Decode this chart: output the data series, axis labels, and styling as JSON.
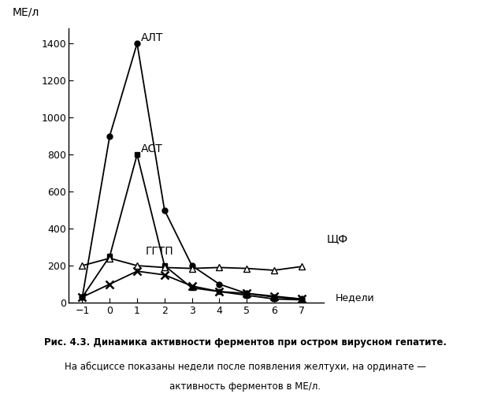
{
  "x": [
    -1,
    0,
    1,
    2,
    3,
    4,
    5,
    6,
    7
  ],
  "ALT": [
    30,
    900,
    1400,
    500,
    200,
    100,
    50,
    30,
    20
  ],
  "AST": [
    30,
    250,
    800,
    200,
    80,
    60,
    40,
    20,
    15
  ],
  "GGTP": [
    30,
    100,
    170,
    150,
    90,
    60,
    50,
    35,
    20
  ],
  "ALP": [
    200,
    240,
    200,
    190,
    185,
    190,
    185,
    175,
    195
  ],
  "ylabel": "МЕ/л",
  "xlabel_end": "Недели",
  "yticks": [
    0,
    200,
    400,
    600,
    800,
    1000,
    1200,
    1400
  ],
  "xticks": [
    -1,
    0,
    1,
    2,
    3,
    4,
    5,
    6,
    7
  ],
  "ylim": [
    0,
    1480
  ],
  "xlim": [
    -1.5,
    7.8
  ],
  "label_ALT": "АЛТ",
  "label_AST": "АСТ",
  "label_GGTP": "ГГТП",
  "label_ALP": "ЩФ",
  "line_color": "#000000",
  "bg_color": "#ffffff",
  "fig_caption_bold": "Рис. 4.3. Динамика активности ферментов при остром вирусном гепатите.",
  "fig_caption_normal1": "На абсциссе показаны недели после появления желтухи, на ординате —",
  "fig_caption_normal2": "активность ферментов в МЕ/л.",
  "ann_ALT_x": 1.15,
  "ann_ALT_y": 1400,
  "ann_AST_x": 1.15,
  "ann_AST_y": 800,
  "ann_GGTP_x": 1.3,
  "ann_GGTP_y": 245,
  "ann_ALP_x": 7.1,
  "ann_ALP_y": 195
}
